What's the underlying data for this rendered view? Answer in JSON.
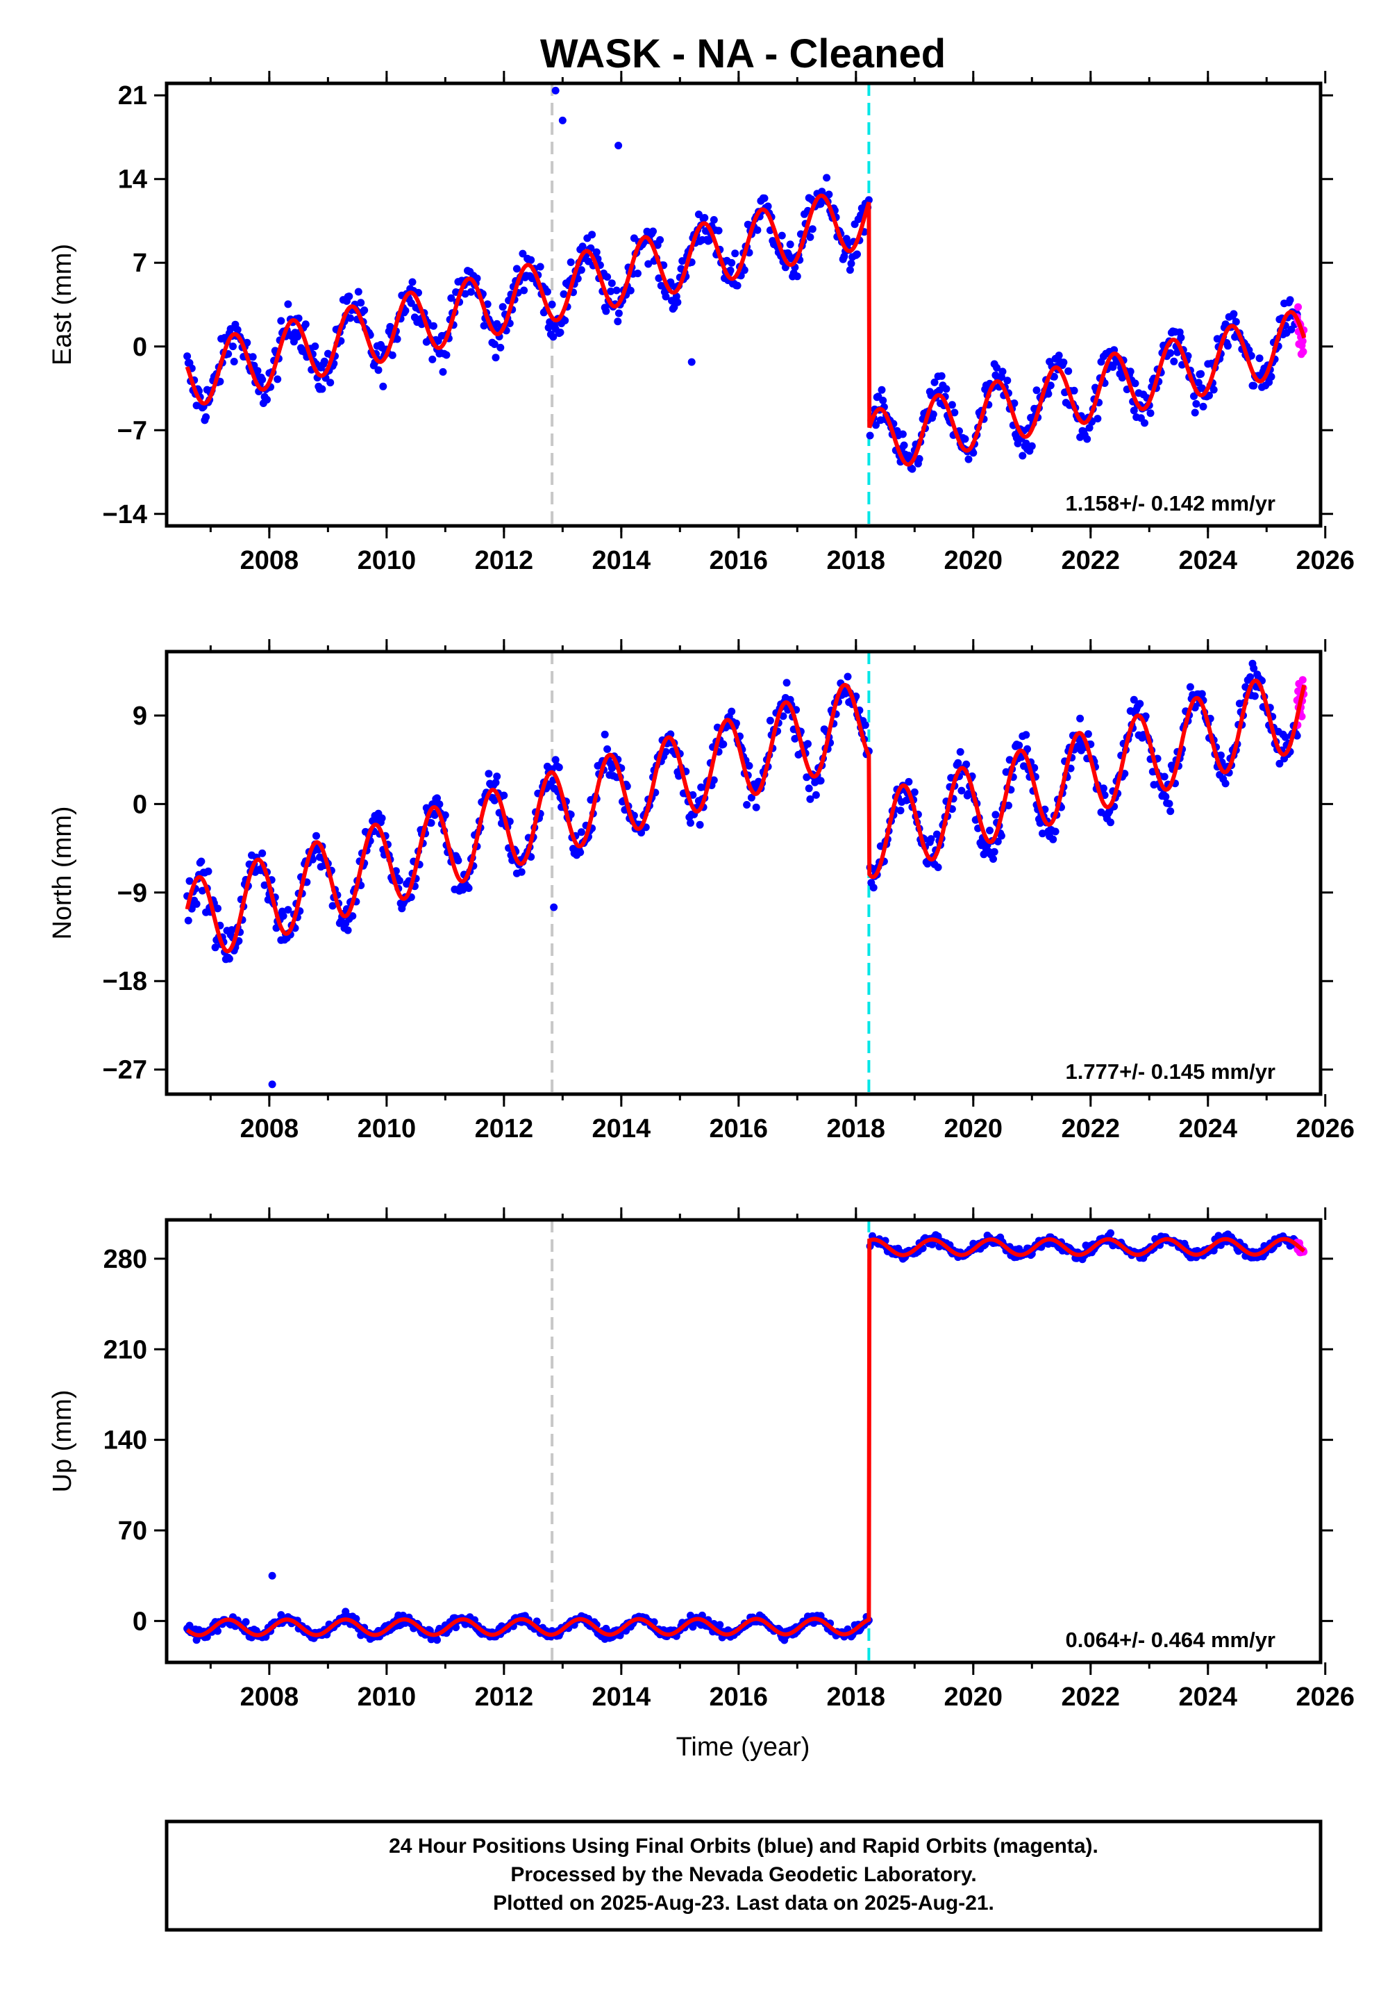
{
  "title": "WASK  - NA - Cleaned",
  "x_axis_label": "Time (year)",
  "footer": {
    "line1": "24 Hour Positions Using Final Orbits (blue) and Rapid Orbits (magenta).",
    "line2": "Processed by the Nevada Geodetic Laboratory.",
    "line3": "Plotted on 2025-Aug-23. Last data on 2025-Aug-21."
  },
  "colors": {
    "final_orbits": "#0000ff",
    "rapid_orbits": "#ff00ff",
    "model": "#ff0000",
    "equipment_change": "#c8c8c8",
    "earthquake_or_offset": "#00e6e6"
  },
  "chart_data": [
    {
      "type": "scatter",
      "panel": "east",
      "ylabel": "East (mm)",
      "xlim": [
        2006.25,
        2025.92
      ],
      "ylim": [
        -15,
        22
      ],
      "x_ticks": [
        2008,
        2010,
        2012,
        2014,
        2016,
        2018,
        2020,
        2022,
        2024,
        2026
      ],
      "y_ticks": [
        -14,
        -7,
        0,
        7,
        14,
        21
      ],
      "rate_annotation": "1.158+/- 0.142 mm/yr",
      "vertical_lines": [
        {
          "x": 2012.82,
          "kind": "equipment_change"
        },
        {
          "x": 2018.22,
          "kind": "earthquake_or_offset"
        }
      ],
      "data_range": [
        2006.6,
        2025.64
      ],
      "rapid_orbit_range": [
        2025.52,
        2025.64
      ],
      "model": {
        "base_at_2006_6": -2.5,
        "trend_mm_per_yr": 1.158,
        "annual_amp": 2.6,
        "annual_phase": 0.15,
        "steps": [
          {
            "x": 2018.22,
            "dy": -19.0
          }
        ]
      },
      "outliers": [
        [
          2012.88,
          21.4
        ],
        [
          2013.0,
          18.9
        ],
        [
          2013.95,
          16.8
        ],
        [
          2015.2,
          -1.3
        ]
      ],
      "series": [
        {
          "name": "Final Orbits",
          "color": "#0000ff"
        },
        {
          "name": "Rapid Orbits",
          "color": "#ff00ff"
        },
        {
          "name": "Model",
          "color": "#ff0000"
        }
      ]
    },
    {
      "type": "scatter",
      "panel": "north",
      "ylabel": "North (mm)",
      "xlim": [
        2006.25,
        2025.92
      ],
      "ylim": [
        -29.5,
        15.5
      ],
      "x_ticks": [
        2008,
        2010,
        2012,
        2014,
        2016,
        2018,
        2020,
        2022,
        2024,
        2026
      ],
      "y_ticks": [
        -27,
        -18,
        -9,
        0,
        9
      ],
      "rate_annotation": "1.777+/- 0.145 mm/yr",
      "vertical_lines": [
        {
          "x": 2012.82,
          "kind": "equipment_change"
        },
        {
          "x": 2018.22,
          "kind": "earthquake_or_offset"
        }
      ],
      "data_range": [
        2006.6,
        2025.64
      ],
      "rapid_orbit_range": [
        2025.52,
        2025.64
      ],
      "model": {
        "base_at_2006_6": -12.0,
        "trend_mm_per_yr": 1.777,
        "annual_amp": 4.2,
        "annual_phase": 0.55,
        "steps": [
          {
            "x": 2018.22,
            "dy": -12.0
          }
        ]
      },
      "outliers": [
        [
          2008.05,
          -28.5
        ],
        [
          2012.85,
          -10.5
        ]
      ],
      "series": [
        {
          "name": "Final Orbits",
          "color": "#0000ff"
        },
        {
          "name": "Rapid Orbits",
          "color": "#ff00ff"
        },
        {
          "name": "Model",
          "color": "#ff0000"
        }
      ]
    },
    {
      "type": "scatter",
      "panel": "up",
      "ylabel": "Up (mm)",
      "xlim": [
        2006.25,
        2025.92
      ],
      "ylim": [
        -32,
        310
      ],
      "x_ticks": [
        2008,
        2010,
        2012,
        2014,
        2016,
        2018,
        2020,
        2022,
        2024,
        2026
      ],
      "y_ticks": [
        0,
        70,
        140,
        210,
        280
      ],
      "rate_annotation": "0.064+/- 0.464 mm/yr",
      "vertical_lines": [
        {
          "x": 2012.82,
          "kind": "equipment_change"
        },
        {
          "x": 2018.22,
          "kind": "earthquake_or_offset"
        }
      ],
      "data_range": [
        2006.6,
        2025.64
      ],
      "rapid_orbit_range": [
        2025.52,
        2025.64
      ],
      "model": {
        "base_at_2006_6": -5.0,
        "trend_mm_per_yr": 0.064,
        "annual_amp": 6.0,
        "annual_phase": 0.05,
        "steps": [
          {
            "x": 2018.22,
            "dy": 293.0
          }
        ]
      },
      "outliers": [
        [
          2008.05,
          35.0
        ]
      ],
      "series": [
        {
          "name": "Final Orbits",
          "color": "#0000ff"
        },
        {
          "name": "Rapid Orbits",
          "color": "#ff00ff"
        },
        {
          "name": "Model",
          "color": "#ff0000"
        }
      ]
    }
  ]
}
